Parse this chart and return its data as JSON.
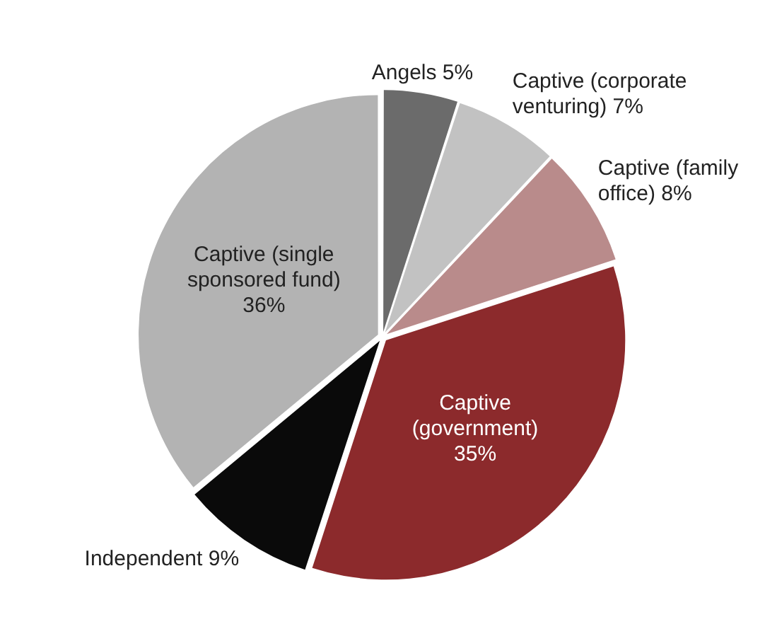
{
  "chart_data": {
    "type": "pie",
    "categories": [
      "Angels",
      "Captive (corporate venturing)",
      "Captive (family office)",
      "Captive (government)",
      "Independent",
      "Captive (single sponsored fund)"
    ],
    "values": [
      5,
      7,
      8,
      35,
      9,
      36
    ],
    "colors": [
      "#6b6b6b",
      "#c2c2c2",
      "#b98b8b",
      "#8c2a2c",
      "#0a0a0a",
      "#b3b3b3"
    ],
    "value_labels": [
      "5%",
      "7%",
      "8%",
      "35%",
      "9%",
      "36%"
    ],
    "legend": false
  }
}
